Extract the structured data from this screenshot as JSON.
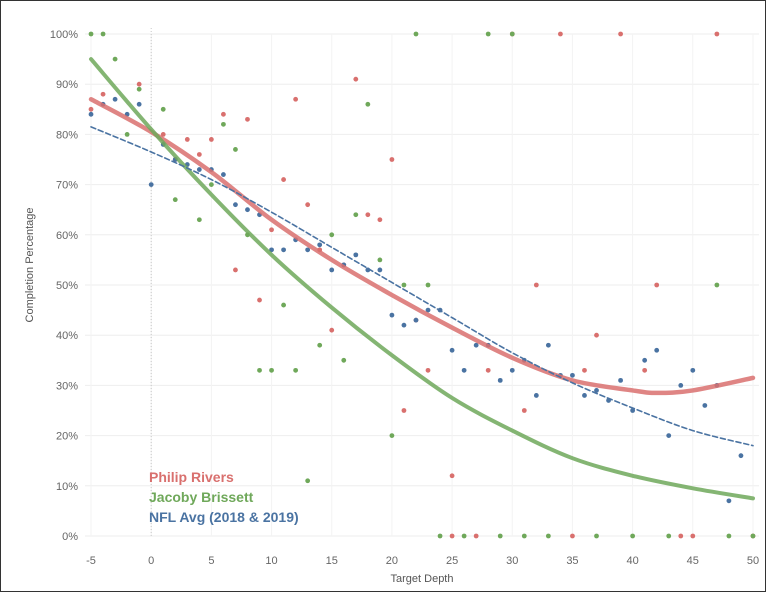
{
  "chart_data": {
    "type": "scatter",
    "title": "",
    "xlabel": "Target Depth",
    "ylabel": "Completion Percentage",
    "xlim": [
      -5.5,
      50.5
    ],
    "ylim": [
      0,
      100
    ],
    "x_ticks": [
      -5,
      0,
      5,
      10,
      15,
      20,
      25,
      30,
      35,
      40,
      45,
      50
    ],
    "x_tick_labels": [
      "-5",
      "0",
      "5",
      "10",
      "15",
      "20",
      "25",
      "30",
      "35",
      "40",
      "45",
      "50"
    ],
    "y_ticks": [
      0,
      10,
      20,
      30,
      40,
      50,
      60,
      70,
      80,
      90,
      100
    ],
    "y_tick_labels": [
      "0%",
      "10%",
      "20%",
      "30%",
      "40%",
      "50%",
      "60%",
      "70%",
      "80%",
      "90%",
      "100%"
    ],
    "grid": true,
    "legend_position": "bottom-left",
    "series": [
      {
        "name": "Philip Rivers",
        "color": "#d9706e",
        "points": [
          [
            -5,
            85
          ],
          [
            -4,
            88
          ],
          [
            -1,
            90
          ],
          [
            1,
            80
          ],
          [
            2,
            75
          ],
          [
            3,
            79
          ],
          [
            4,
            76
          ],
          [
            5,
            79
          ],
          [
            6,
            84
          ],
          [
            7,
            53
          ],
          [
            8,
            83
          ],
          [
            9,
            47
          ],
          [
            10,
            61
          ],
          [
            11,
            71
          ],
          [
            12,
            87
          ],
          [
            13,
            66
          ],
          [
            14,
            57
          ],
          [
            15,
            41
          ],
          [
            16,
            54
          ],
          [
            17,
            91
          ],
          [
            18,
            64
          ],
          [
            19,
            63
          ],
          [
            20,
            75
          ],
          [
            21,
            25
          ],
          [
            22,
            43
          ],
          [
            23,
            33
          ],
          [
            25,
            12
          ],
          [
            28,
            33
          ],
          [
            30,
            100
          ],
          [
            31,
            25
          ],
          [
            32,
            50
          ],
          [
            34,
            100
          ],
          [
            36,
            33
          ],
          [
            37,
            40
          ],
          [
            39,
            100
          ],
          [
            41,
            33
          ],
          [
            42,
            50
          ],
          [
            47,
            100
          ],
          [
            25,
            0
          ],
          [
            27,
            0
          ],
          [
            35,
            0
          ],
          [
            44,
            0
          ],
          [
            45,
            0
          ],
          [
            50,
            0
          ]
        ],
        "trend": [
          [
            -5,
            87
          ],
          [
            0,
            80.5
          ],
          [
            5,
            72.5
          ],
          [
            10,
            63
          ],
          [
            15,
            55
          ],
          [
            20,
            48
          ],
          [
            25,
            41.5
          ],
          [
            30,
            35.5
          ],
          [
            35,
            31
          ],
          [
            40,
            29
          ],
          [
            42,
            28.5
          ],
          [
            45,
            29
          ],
          [
            50,
            31.5
          ]
        ]
      },
      {
        "name": "Jacoby Brissett",
        "color": "#6fa85a",
        "points": [
          [
            -5,
            100
          ],
          [
            -4,
            100
          ],
          [
            -3,
            95
          ],
          [
            -2,
            80
          ],
          [
            -1,
            89
          ],
          [
            1,
            85
          ],
          [
            2,
            67
          ],
          [
            4,
            63
          ],
          [
            5,
            70
          ],
          [
            6,
            82
          ],
          [
            7,
            77
          ],
          [
            8,
            60
          ],
          [
            9,
            33
          ],
          [
            10,
            33
          ],
          [
            11,
            46
          ],
          [
            12,
            33
          ],
          [
            13,
            11
          ],
          [
            14,
            38
          ],
          [
            15,
            60
          ],
          [
            16,
            35
          ],
          [
            17,
            64
          ],
          [
            18,
            86
          ],
          [
            19,
            55
          ],
          [
            20,
            20
          ],
          [
            21,
            50
          ],
          [
            22,
            100
          ],
          [
            23,
            50
          ],
          [
            28,
            100
          ],
          [
            30,
            100
          ],
          [
            47,
            50
          ],
          [
            24,
            0
          ],
          [
            26,
            0
          ],
          [
            29,
            0
          ],
          [
            31,
            0
          ],
          [
            33,
            0
          ],
          [
            37,
            0
          ],
          [
            40,
            0
          ],
          [
            43,
            0
          ],
          [
            48,
            0
          ],
          [
            50,
            0
          ]
        ],
        "trend": [
          [
            -5,
            95
          ],
          [
            0,
            81
          ],
          [
            5,
            68
          ],
          [
            10,
            56
          ],
          [
            15,
            45.5
          ],
          [
            20,
            36
          ],
          [
            25,
            27.5
          ],
          [
            30,
            21
          ],
          [
            35,
            15.5
          ],
          [
            40,
            12
          ],
          [
            45,
            9.5
          ],
          [
            50,
            7.5
          ]
        ]
      },
      {
        "name": "NFL Avg (2018 & 2019)",
        "color": "#4a73a2",
        "points": [
          [
            -5,
            84
          ],
          [
            -4,
            86
          ],
          [
            -3,
            87
          ],
          [
            -2,
            84
          ],
          [
            -1,
            86
          ],
          [
            0,
            70
          ],
          [
            1,
            78
          ],
          [
            2,
            75
          ],
          [
            3,
            74
          ],
          [
            4,
            73
          ],
          [
            5,
            73
          ],
          [
            6,
            72
          ],
          [
            7,
            66
          ],
          [
            8,
            65
          ],
          [
            9,
            64
          ],
          [
            10,
            57
          ],
          [
            11,
            57
          ],
          [
            12,
            59
          ],
          [
            13,
            57
          ],
          [
            14,
            58
          ],
          [
            15,
            53
          ],
          [
            16,
            54
          ],
          [
            17,
            56
          ],
          [
            18,
            53
          ],
          [
            19,
            53
          ],
          [
            20,
            44
          ],
          [
            21,
            42
          ],
          [
            22,
            43
          ],
          [
            23,
            45
          ],
          [
            24,
            45
          ],
          [
            25,
            37
          ],
          [
            26,
            33
          ],
          [
            27,
            38
          ],
          [
            28,
            38
          ],
          [
            29,
            31
          ],
          [
            30,
            33
          ],
          [
            31,
            35
          ],
          [
            32,
            28
          ],
          [
            33,
            38
          ],
          [
            34,
            32
          ],
          [
            35,
            32
          ],
          [
            36,
            28
          ],
          [
            37,
            29
          ],
          [
            38,
            27
          ],
          [
            39,
            31
          ],
          [
            40,
            25
          ],
          [
            41,
            35
          ],
          [
            42,
            37
          ],
          [
            43,
            20
          ],
          [
            44,
            30
          ],
          [
            45,
            33
          ],
          [
            46,
            26
          ],
          [
            47,
            30
          ],
          [
            48,
            7
          ],
          [
            49,
            16
          ]
        ],
        "trend": [
          [
            -5,
            81.5
          ],
          [
            0,
            76.5
          ],
          [
            5,
            71
          ],
          [
            10,
            64.5
          ],
          [
            15,
            57.5
          ],
          [
            20,
            50.5
          ],
          [
            25,
            43.5
          ],
          [
            30,
            36.5
          ],
          [
            35,
            30.5
          ],
          [
            40,
            25.5
          ],
          [
            45,
            21
          ],
          [
            50,
            18
          ]
        ]
      }
    ]
  }
}
